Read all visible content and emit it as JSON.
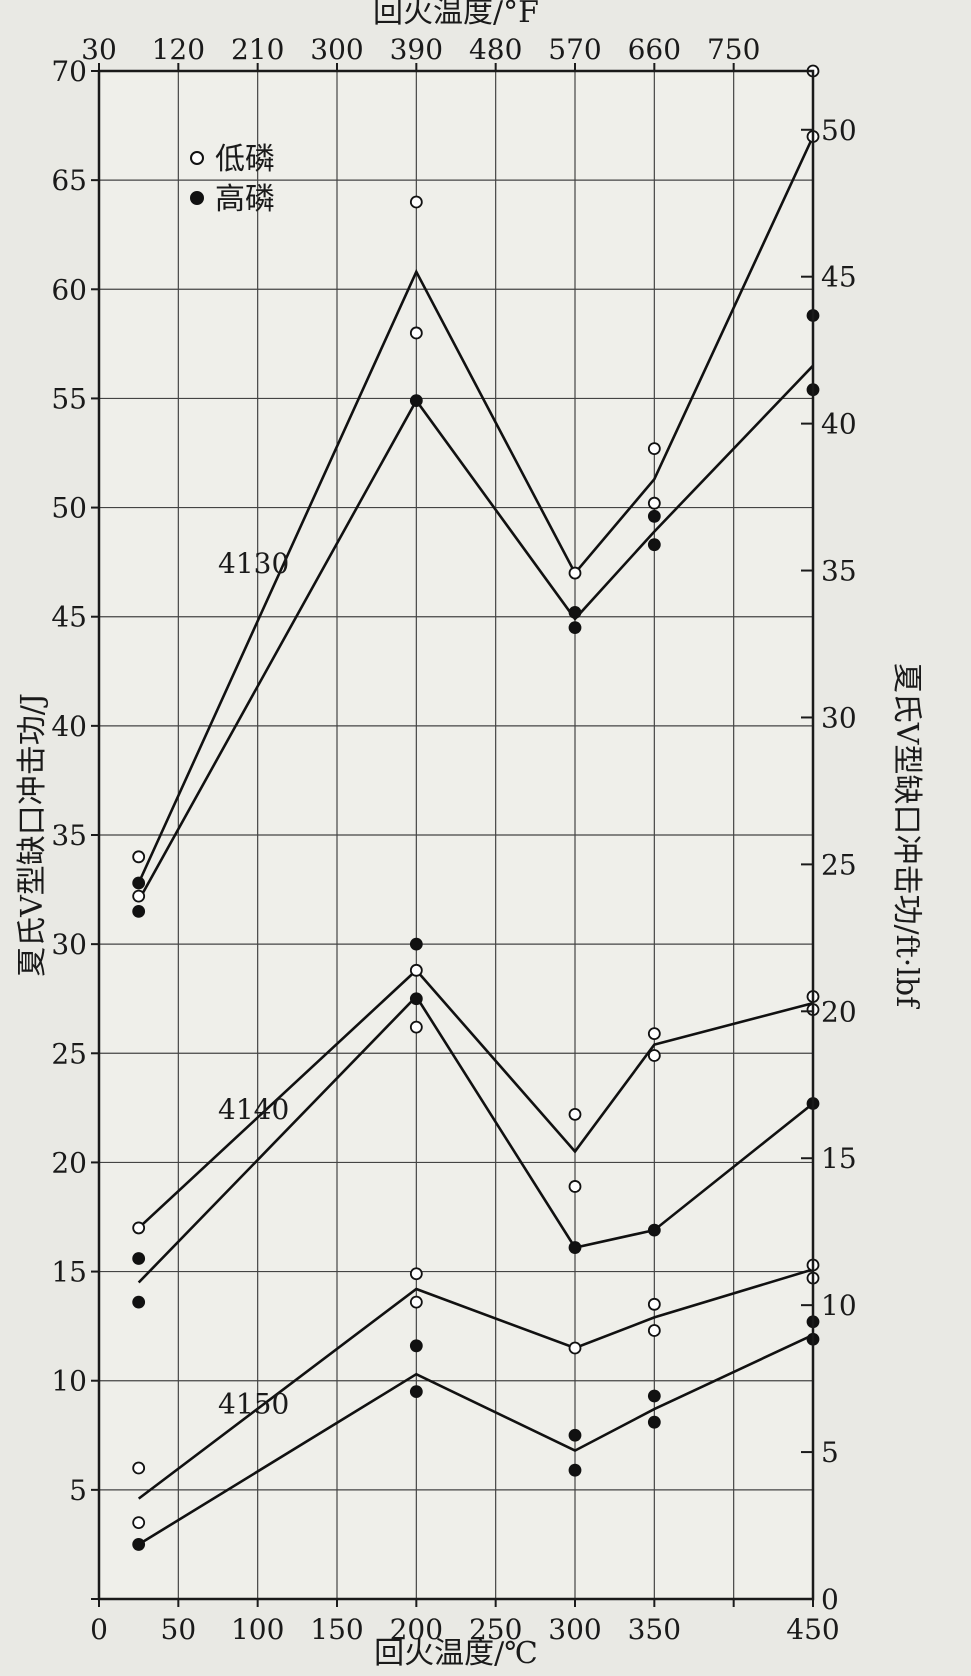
{
  "chart_data": {
    "type": "scatter",
    "title": "",
    "xlabel": "回火温度/℃",
    "xlabel_top": "回火温度/°F",
    "ylabel": "夏氏V型缺口冲击功/J",
    "ylabel_right": "夏氏V型缺口冲击功/ft·lbf",
    "xlim": [
      0,
      450
    ],
    "ylim": [
      0,
      70
    ],
    "ylim_right": [
      0,
      52
    ],
    "x_ticks": [
      0,
      50,
      100,
      150,
      200,
      250,
      300,
      350,
      400,
      450
    ],
    "x_tick_labels": [
      "0",
      "50",
      "100",
      "150",
      "200",
      "250",
      "300",
      "350",
      "",
      "450"
    ],
    "top_ticks_c": [
      0,
      50,
      100,
      150,
      200,
      250,
      300,
      350,
      400
    ],
    "top_tick_labels": [
      "30",
      "120",
      "210",
      "300",
      "390",
      "480",
      "570",
      "660",
      "750"
    ],
    "y_ticks": [
      0,
      5,
      10,
      15,
      20,
      25,
      30,
      35,
      40,
      45,
      50,
      55,
      60,
      65,
      70
    ],
    "y_tick_labels": [
      "",
      "5",
      "10",
      "15",
      "20",
      "25",
      "30",
      "35",
      "40",
      "45",
      "50",
      "55",
      "60",
      "65",
      "70"
    ],
    "y_right_ticks": [
      0,
      5,
      10,
      15,
      20,
      25,
      30,
      35,
      40,
      45,
      50
    ],
    "y_right_tick_labels": [
      "0",
      "5",
      "10",
      "15",
      "20",
      "25",
      "30",
      "35",
      "40",
      "45",
      "50"
    ],
    "grid": true,
    "legend": {
      "position": "top-left",
      "entries": [
        {
          "marker": "open-circle",
          "label": "低磷"
        },
        {
          "marker": "filled-circle",
          "label": "高磷"
        }
      ]
    },
    "group_labels": [
      {
        "text": "4130",
        "x": 75,
        "y": 47
      },
      {
        "text": "4140",
        "x": 75,
        "y": 22
      },
      {
        "text": "4150",
        "x": 75,
        "y": 8.5
      }
    ],
    "series": [
      {
        "group": "4130",
        "marker": "open",
        "points": [
          [
            25,
            34
          ],
          [
            25,
            32.2
          ],
          [
            200,
            64
          ],
          [
            200,
            58
          ],
          [
            300,
            47
          ],
          [
            350,
            52.7
          ],
          [
            350,
            50.2
          ],
          [
            450,
            70
          ],
          [
            450,
            67
          ]
        ]
      },
      {
        "group": "4130",
        "marker": "filled",
        "points": [
          [
            25,
            32.8
          ],
          [
            25,
            31.5
          ],
          [
            200,
            54.9
          ],
          [
            300,
            45.2
          ],
          [
            300,
            44.5
          ],
          [
            350,
            49.6
          ],
          [
            350,
            48.3
          ],
          [
            450,
            58.8
          ],
          [
            450,
            55.4
          ]
        ]
      },
      {
        "group": "4140",
        "marker": "open",
        "points": [
          [
            25,
            17
          ],
          [
            200,
            28.8
          ],
          [
            200,
            26.2
          ],
          [
            300,
            22.2
          ],
          [
            300,
            18.9
          ],
          [
            350,
            25.9
          ],
          [
            350,
            24.9
          ],
          [
            450,
            27.6
          ],
          [
            450,
            27
          ]
        ]
      },
      {
        "group": "4140",
        "marker": "filled",
        "points": [
          [
            25,
            15.6
          ],
          [
            25,
            13.6
          ],
          [
            200,
            30
          ],
          [
            200,
            27.5
          ],
          [
            300,
            16.1
          ],
          [
            350,
            16.9
          ],
          [
            450,
            22.7
          ]
        ]
      },
      {
        "group": "4150",
        "marker": "open",
        "points": [
          [
            25,
            6
          ],
          [
            25,
            3.5
          ],
          [
            200,
            14.9
          ],
          [
            200,
            13.6
          ],
          [
            300,
            11.5
          ],
          [
            350,
            13.5
          ],
          [
            350,
            12.3
          ],
          [
            450,
            15.3
          ],
          [
            450,
            14.7
          ]
        ]
      },
      {
        "group": "4150",
        "marker": "filled",
        "points": [
          [
            25,
            2.5
          ],
          [
            200,
            11.6
          ],
          [
            200,
            9.5
          ],
          [
            300,
            7.5
          ],
          [
            300,
            5.9
          ],
          [
            350,
            9.3
          ],
          [
            350,
            8.1
          ],
          [
            450,
            12.7
          ],
          [
            450,
            11.9
          ]
        ]
      }
    ],
    "curves": [
      {
        "group": "4130",
        "points": [
          [
            25,
            32.8
          ],
          [
            200,
            60.8
          ],
          [
            300,
            47
          ],
          [
            350,
            51.3
          ],
          [
            450,
            67
          ]
        ]
      },
      {
        "group": "4130",
        "points": [
          [
            25,
            32
          ],
          [
            200,
            54.9
          ],
          [
            300,
            44.9
          ],
          [
            350,
            48.9
          ],
          [
            450,
            56.5
          ]
        ]
      },
      {
        "group": "4140",
        "points": [
          [
            25,
            17
          ],
          [
            200,
            28.8
          ],
          [
            300,
            20.5
          ],
          [
            350,
            25.4
          ],
          [
            450,
            27.3
          ]
        ]
      },
      {
        "group": "4140",
        "points": [
          [
            25,
            14.5
          ],
          [
            200,
            27.6
          ],
          [
            300,
            16.1
          ],
          [
            350,
            16.9
          ],
          [
            450,
            22.7
          ]
        ]
      },
      {
        "group": "4150",
        "points": [
          [
            25,
            4.6
          ],
          [
            200,
            14.2
          ],
          [
            300,
            11.5
          ],
          [
            350,
            12.9
          ],
          [
            450,
            15.1
          ]
        ]
      },
      {
        "group": "4150",
        "points": [
          [
            25,
            2.5
          ],
          [
            200,
            10.3
          ],
          [
            300,
            6.8
          ],
          [
            350,
            8.7
          ],
          [
            450,
            12.1
          ]
        ]
      }
    ]
  }
}
